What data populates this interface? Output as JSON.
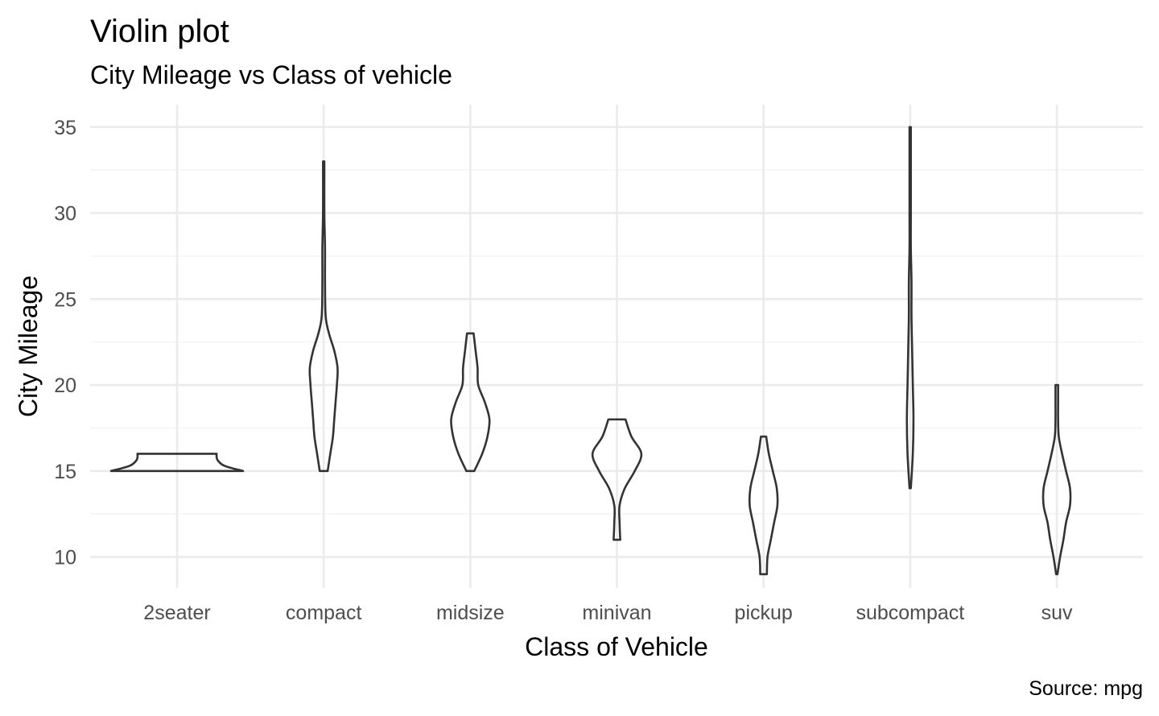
{
  "chart_data": {
    "type": "violin",
    "title": "Violin plot",
    "subtitle": "City Mileage vs Class of vehicle",
    "caption": "Source: mpg",
    "xlabel": "Class of Vehicle",
    "ylabel": "City Mileage",
    "ylim": [
      8.2,
      36.3
    ],
    "yticks": [
      10,
      15,
      20,
      25,
      30,
      35
    ],
    "grid": true,
    "categories": [
      "2seater",
      "compact",
      "midsize",
      "minivan",
      "pickup",
      "subcompact",
      "suv"
    ],
    "violins": [
      {
        "category": "2seater",
        "min": 15,
        "max": 16,
        "profile": [
          [
            15,
            1.0
          ],
          [
            15.3,
            0.72
          ],
          [
            15.6,
            0.62
          ],
          [
            15.8,
            0.6
          ],
          [
            16,
            0.6
          ]
        ]
      },
      {
        "category": "compact",
        "min": 15,
        "max": 33,
        "profile": [
          [
            15,
            0.06
          ],
          [
            16,
            0.1
          ],
          [
            17,
            0.14
          ],
          [
            18,
            0.16
          ],
          [
            19,
            0.18
          ],
          [
            20,
            0.2
          ],
          [
            21,
            0.21
          ],
          [
            22,
            0.16
          ],
          [
            23,
            0.08
          ],
          [
            24,
            0.03
          ],
          [
            26,
            0.02
          ],
          [
            28,
            0.02
          ],
          [
            30,
            0.01
          ],
          [
            33,
            0.01
          ]
        ]
      },
      {
        "category": "midsize",
        "min": 15,
        "max": 23,
        "profile": [
          [
            15,
            0.06
          ],
          [
            16,
            0.18
          ],
          [
            17,
            0.26
          ],
          [
            18,
            0.29
          ],
          [
            19,
            0.22
          ],
          [
            20,
            0.12
          ],
          [
            21,
            0.11
          ],
          [
            22,
            0.08
          ],
          [
            23,
            0.05
          ]
        ]
      },
      {
        "category": "minivan",
        "min": 11,
        "max": 18,
        "profile": [
          [
            11,
            0.05
          ],
          [
            12,
            0.04
          ],
          [
            13,
            0.04
          ],
          [
            14,
            0.12
          ],
          [
            15,
            0.27
          ],
          [
            16,
            0.37
          ],
          [
            17,
            0.22
          ],
          [
            18,
            0.13
          ]
        ]
      },
      {
        "category": "pickup",
        "min": 9,
        "max": 17,
        "profile": [
          [
            9,
            0.05
          ],
          [
            10,
            0.06
          ],
          [
            11,
            0.11
          ],
          [
            12,
            0.16
          ],
          [
            13,
            0.21
          ],
          [
            14,
            0.2
          ],
          [
            15,
            0.14
          ],
          [
            16,
            0.08
          ],
          [
            17,
            0.04
          ]
        ]
      },
      {
        "category": "subcompact",
        "min": 14,
        "max": 35,
        "profile": [
          [
            14,
            0.01
          ],
          [
            16,
            0.04
          ],
          [
            18,
            0.05
          ],
          [
            20,
            0.04
          ],
          [
            22,
            0.03
          ],
          [
            24,
            0.02
          ],
          [
            26,
            0.02
          ],
          [
            28,
            0.01
          ],
          [
            30,
            0.01
          ],
          [
            35,
            0.01
          ]
        ]
      },
      {
        "category": "suv",
        "min": 9,
        "max": 20,
        "profile": [
          [
            9,
            0.01
          ],
          [
            10,
            0.05
          ],
          [
            11,
            0.1
          ],
          [
            12,
            0.14
          ],
          [
            13,
            0.2
          ],
          [
            14,
            0.2
          ],
          [
            15,
            0.14
          ],
          [
            16,
            0.08
          ],
          [
            17,
            0.03
          ],
          [
            18,
            0.02
          ],
          [
            19,
            0.02
          ],
          [
            20,
            0.02
          ]
        ]
      }
    ]
  }
}
